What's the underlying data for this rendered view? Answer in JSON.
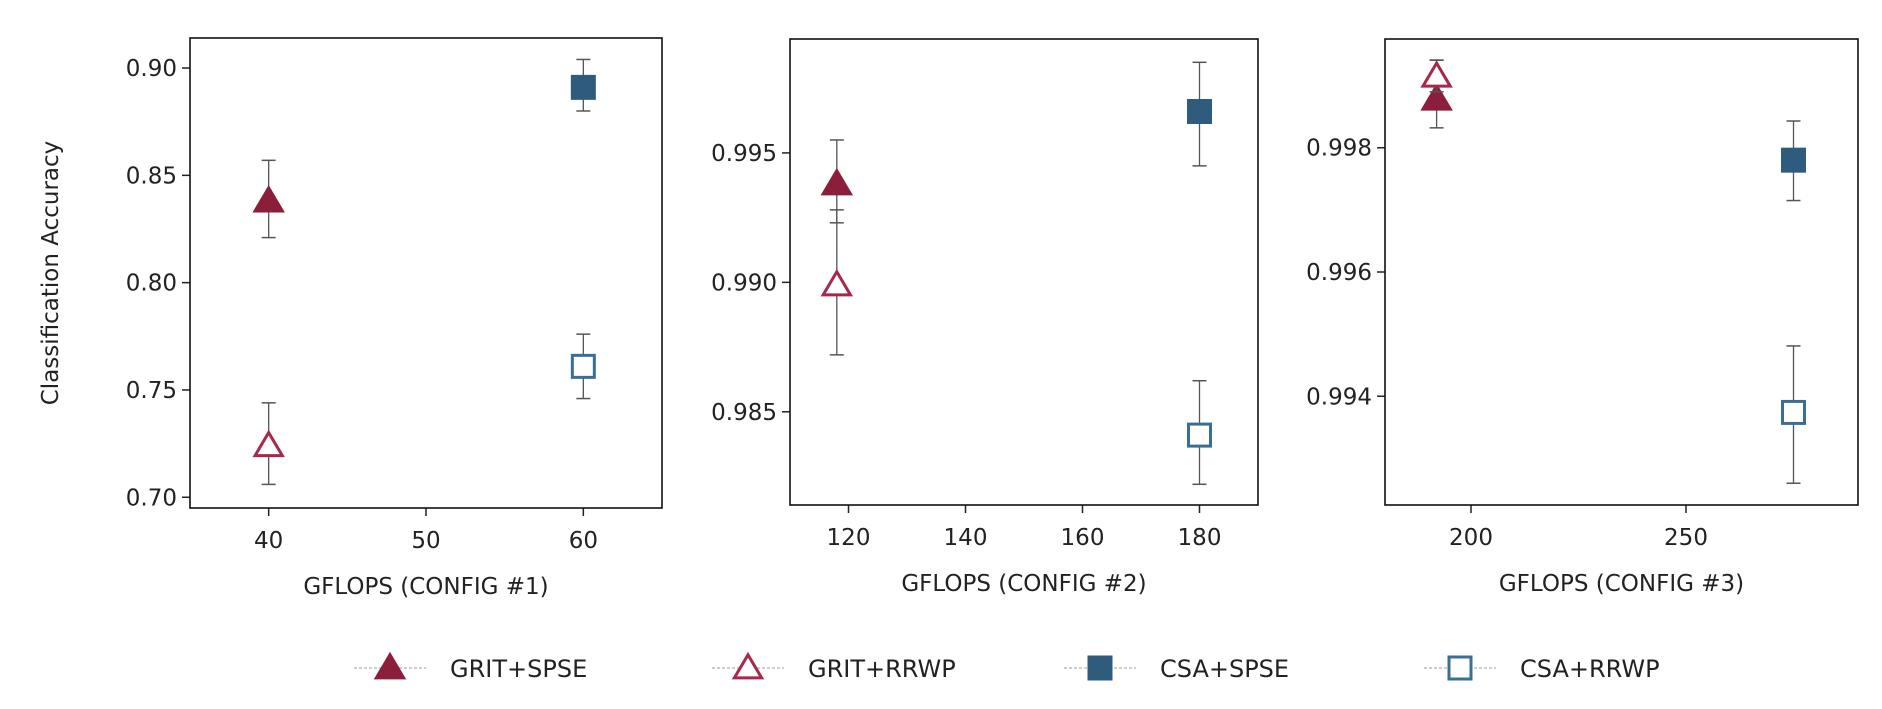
{
  "chart_data": [
    {
      "type": "scatter",
      "xlabel": "GFLOPS (CONFIG #1)",
      "ylabel": "Classification Accuracy",
      "xlim": [
        35,
        65
      ],
      "ylim": [
        0.695,
        0.914
      ],
      "xticks": [
        40,
        50,
        60
      ],
      "yticks": [
        0.7,
        0.75,
        0.8,
        0.85,
        0.9
      ],
      "ytick_labels": [
        "0.70",
        "0.75",
        "0.80",
        "0.85",
        "0.90"
      ],
      "points": [
        {
          "series": "GRIT+SPSE",
          "x": 40,
          "y": 0.838,
          "err_low": 0.821,
          "err_high": 0.857
        },
        {
          "series": "GRIT+RRWP",
          "x": 40,
          "y": 0.724,
          "err_low": 0.706,
          "err_high": 0.744
        },
        {
          "series": "CSA+SPSE",
          "x": 60,
          "y": 0.891,
          "err_low": 0.88,
          "err_high": 0.904
        },
        {
          "series": "CSA+RRWP",
          "x": 60,
          "y": 0.761,
          "err_low": 0.746,
          "err_high": 0.776
        }
      ]
    },
    {
      "type": "scatter",
      "xlabel": "GFLOPS (CONFIG #2)",
      "ylabel": "",
      "xlim": [
        110,
        190
      ],
      "ylim": [
        0.9814,
        0.9994
      ],
      "xticks": [
        120,
        140,
        160,
        180
      ],
      "yticks": [
        0.985,
        0.99,
        0.995
      ],
      "ytick_labels": [
        "0.985",
        "0.990",
        "0.995"
      ],
      "points": [
        {
          "series": "GRIT+SPSE",
          "x": 118,
          "y": 0.9938,
          "err_low": 0.9923,
          "err_high": 0.9955
        },
        {
          "series": "GRIT+RRWP",
          "x": 118,
          "y": 0.9899,
          "err_low": 0.9872,
          "err_high": 0.9928
        },
        {
          "series": "CSA+SPSE",
          "x": 180,
          "y": 0.9966,
          "err_low": 0.9945,
          "err_high": 0.9985
        },
        {
          "series": "CSA+RRWP",
          "x": 180,
          "y": 0.9841,
          "err_low": 0.9822,
          "err_high": 0.9862
        }
      ]
    },
    {
      "type": "scatter",
      "xlabel": "GFLOPS (CONFIG #3)",
      "ylabel": "",
      "xlim": [
        180,
        290
      ],
      "ylim": [
        0.99225,
        0.99975
      ],
      "xticks": [
        200,
        250
      ],
      "yticks": [
        0.994,
        0.996,
        0.998
      ],
      "ytick_labels": [
        "0.994",
        "0.996",
        "0.998"
      ],
      "points": [
        {
          "series": "GRIT+SPSE",
          "x": 192,
          "y": 0.99878,
          "err_low": 0.99832,
          "err_high": 0.99941
        },
        {
          "series": "GRIT+RRWP",
          "x": 192,
          "y": 0.99915,
          "err_low": 0.9989,
          "err_high": 0.99941
        },
        {
          "series": "CSA+SPSE",
          "x": 275,
          "y": 0.9978,
          "err_low": 0.99715,
          "err_high": 0.99843
        },
        {
          "series": "CSA+RRWP",
          "x": 275,
          "y": 0.99374,
          "err_low": 0.9926,
          "err_high": 0.99481
        }
      ]
    }
  ],
  "legend": {
    "placement": "bottom-center",
    "items": [
      {
        "name": "GRIT+SPSE",
        "marker": "triangle-filled",
        "color": "#8b1e3a"
      },
      {
        "name": "GRIT+RRWP",
        "marker": "triangle-open",
        "color": "#a8284a"
      },
      {
        "name": "CSA+SPSE",
        "marker": "square-filled",
        "color": "#2f5b7c"
      },
      {
        "name": "CSA+RRWP",
        "marker": "square-open",
        "color": "#3a6f95"
      }
    ]
  },
  "grid": false
}
